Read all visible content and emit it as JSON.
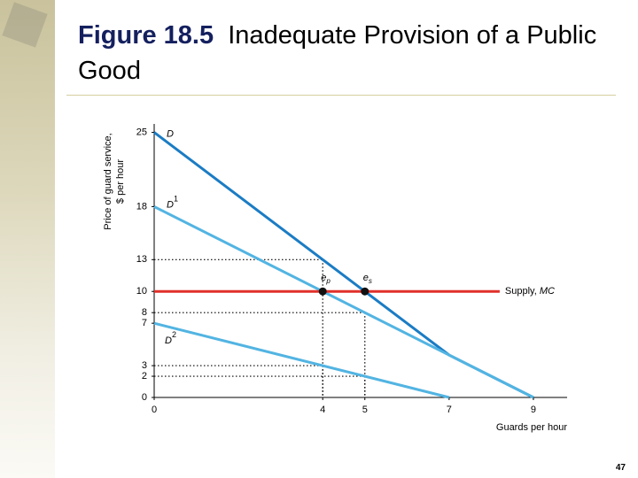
{
  "chart_data": {
    "type": "line",
    "figure_label": "Figure 18.5",
    "title": "Inadequate Provision of a Public Good",
    "y_label": [
      "Price of guard service,",
      "$ per hour"
    ],
    "x_label": "Guards per hour",
    "xlim": [
      0,
      9.8
    ],
    "ylim": [
      0,
      25.8
    ],
    "xticks": [
      0,
      4,
      5,
      7,
      9
    ],
    "yticks": [
      0,
      2,
      3,
      7,
      8,
      10,
      13,
      18,
      25
    ],
    "series": [
      {
        "name": "D",
        "color": "#1b7cc4",
        "x": [
          0,
          7,
          9
        ],
        "values": [
          25,
          4,
          0
        ]
      },
      {
        "name": "D",
        "superscript": "1",
        "color": "#52b4e2",
        "x": [
          0,
          9
        ],
        "values": [
          18,
          0
        ]
      },
      {
        "name": "D",
        "superscript": "2",
        "color": "#52b4e2",
        "x": [
          0,
          7
        ],
        "values": [
          7,
          0
        ]
      },
      {
        "name": "Supply, ",
        "name_italic": "MC",
        "color": "#e0302a",
        "x": [
          0,
          8.2
        ],
        "values": [
          10,
          10
        ]
      }
    ],
    "points": [
      {
        "name": "e",
        "subscript": "p",
        "x": 4,
        "value": 10
      },
      {
        "name": "e",
        "subscript": "s",
        "x": 5,
        "value": 10
      }
    ],
    "guides": [
      {
        "x": 4,
        "value": 13
      },
      {
        "x": 5,
        "value": 8
      },
      {
        "x": 4,
        "value": 3
      },
      {
        "x": 5,
        "value": 2
      }
    ],
    "page_number": "47"
  }
}
